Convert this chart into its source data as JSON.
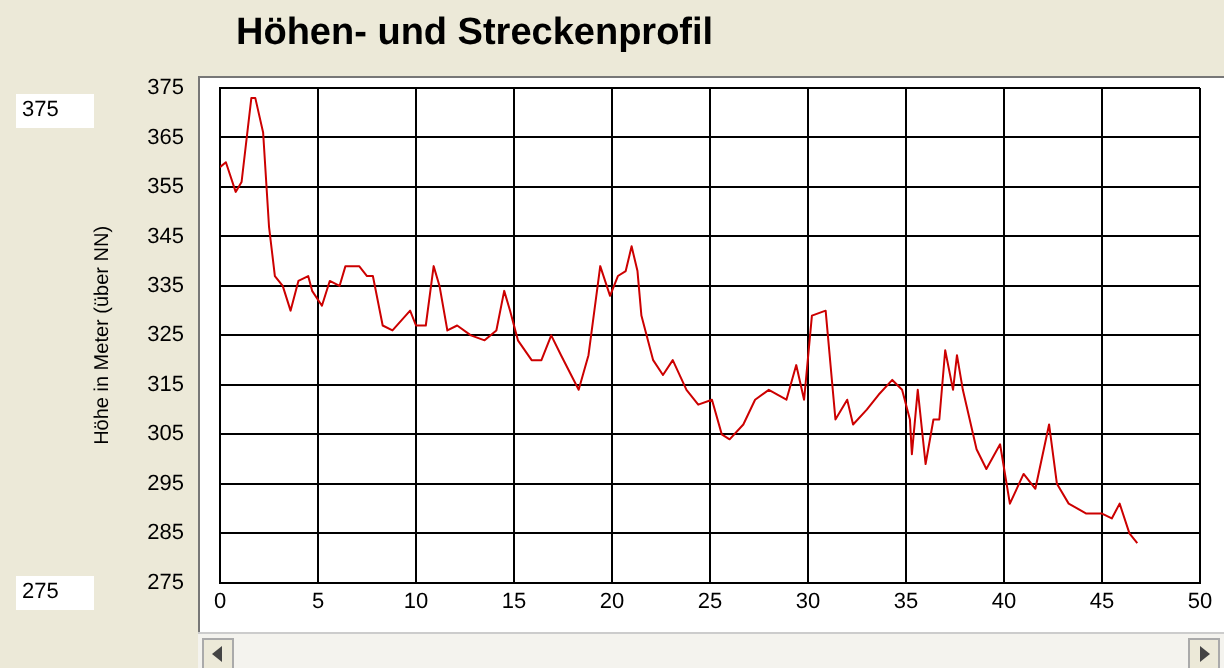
{
  "chart_data": {
    "type": "line",
    "title": "Höhen- und Streckenprofil",
    "ylabel": "Höhe in Meter (über NN)",
    "annotations": [
      "375",
      "275"
    ],
    "xlim": [
      0,
      50
    ],
    "xticks": [
      0,
      5,
      10,
      15,
      20,
      25,
      30,
      35,
      40,
      45,
      50
    ],
    "ylim": [
      275,
      375
    ],
    "yticks": [
      275,
      285,
      295,
      305,
      315,
      325,
      335,
      345,
      355,
      365,
      375
    ],
    "grid": true,
    "legend": false,
    "marker": "none",
    "line_style": "solid",
    "series": [
      {
        "color": "#cc0000",
        "x": [
          0,
          0.3,
          0.8,
          1.1,
          1.6,
          1.8,
          2.2,
          2.5,
          2.8,
          3.2,
          3.6,
          4.0,
          4.5,
          4.7,
          5.2,
          5.6,
          6.1,
          6.4,
          7.1,
          7.5,
          7.8,
          8.3,
          8.8,
          9.7,
          10.0,
          10.5,
          10.9,
          11.2,
          11.6,
          12.1,
          12.8,
          13.5,
          14.1,
          14.5,
          14.8,
          15.2,
          15.9,
          16.4,
          16.9,
          17.4,
          18.3,
          18.8,
          19.2,
          19.4,
          19.9,
          20.3,
          20.7,
          21.0,
          21.3,
          21.5,
          22.1,
          22.6,
          23.1,
          23.8,
          24.4,
          25.1,
          25.6,
          26.0,
          26.7,
          27.3,
          28.0,
          28.9,
          29.4,
          29.8,
          30.2,
          30.9,
          31.4,
          32.0,
          32.3,
          33.0,
          33.6,
          34.3,
          34.8,
          35.2,
          35.3,
          35.6,
          36.0,
          36.4,
          36.7,
          37.0,
          37.4,
          37.6,
          37.9,
          38.6,
          39.1,
          39.8,
          40.3,
          41.0,
          41.6,
          42.3,
          42.7,
          43.3,
          44.2,
          45.0,
          45.5,
          45.9,
          46.4,
          46.8
        ],
        "values": [
          359,
          360,
          354,
          356,
          373,
          373,
          366,
          347,
          337,
          335,
          330,
          336,
          337,
          334,
          331,
          336,
          335,
          339,
          339,
          337,
          337,
          327,
          326,
          330,
          327,
          327,
          339,
          335,
          326,
          327,
          325,
          324,
          326,
          334,
          330,
          324,
          320,
          320,
          325,
          321,
          314,
          321,
          333,
          339,
          333,
          337,
          338,
          343,
          338,
          329,
          320,
          317,
          320,
          314,
          311,
          312,
          305,
          304,
          307,
          312,
          314,
          312,
          319,
          312,
          329,
          330,
          308,
          312,
          307,
          310,
          313,
          316,
          314,
          308,
          301,
          314,
          299,
          308,
          308,
          322,
          314,
          321,
          314,
          302,
          298,
          303,
          291,
          297,
          294,
          307,
          295,
          291,
          289,
          289,
          288,
          291,
          285,
          283
        ]
      }
    ]
  }
}
